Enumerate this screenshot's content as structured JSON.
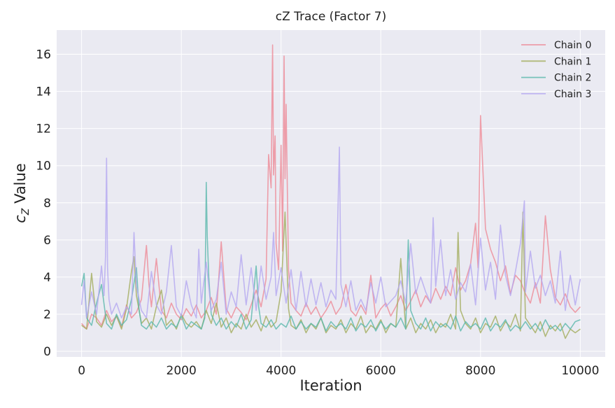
{
  "chart_data": {
    "type": "line",
    "title": "cZ Trace (Factor 7)",
    "xlabel": "Iteration",
    "ylabel": "cZ Value",
    "ylabel_parts": {
      "italic": "c",
      "subscript": "Z",
      "rest": " Value"
    },
    "xlim": [
      -500,
      10500
    ],
    "ylim": [
      -0.3,
      17.3
    ],
    "x_ticks": [
      0,
      2000,
      4000,
      6000,
      8000,
      10000
    ],
    "x_tick_labels": [
      "0",
      "2000",
      "4000",
      "6000",
      "8000",
      "10000"
    ],
    "y_ticks": [
      0,
      2,
      4,
      6,
      8,
      10,
      12,
      14,
      16
    ],
    "y_tick_labels": [
      "0",
      "2",
      "4",
      "6",
      "8",
      "10",
      "12",
      "14",
      "16"
    ],
    "grid": true,
    "legend_position": "top-right",
    "series": [
      {
        "name": "Chain 0",
        "color": "#ee8a96",
        "x": [
          0,
          100,
          200,
          300,
          400,
          500,
          600,
          700,
          800,
          900,
          1000,
          1100,
          1200,
          1300,
          1350,
          1400,
          1500,
          1600,
          1700,
          1800,
          1900,
          2000,
          2100,
          2200,
          2300,
          2400,
          2500,
          2600,
          2700,
          2800,
          2900,
          3000,
          3100,
          3200,
          3300,
          3400,
          3500,
          3600,
          3700,
          3750,
          3800,
          3830,
          3850,
          3880,
          3900,
          3950,
          4000,
          4030,
          4060,
          4080,
          4100,
          4150,
          4200,
          4300,
          4400,
          4500,
          4600,
          4700,
          4800,
          4900,
          5000,
          5100,
          5200,
          5300,
          5400,
          5500,
          5600,
          5700,
          5800,
          5900,
          6000,
          6100,
          6200,
          6300,
          6400,
          6500,
          6600,
          6700,
          6800,
          6900,
          7000,
          7100,
          7200,
          7300,
          7400,
          7500,
          7600,
          7700,
          7800,
          7900,
          7950,
          8000,
          8050,
          8100,
          8200,
          8300,
          8400,
          8500,
          8600,
          8700,
          8800,
          8900,
          9000,
          9100,
          9200,
          9300,
          9400,
          9500,
          9600,
          9700,
          9800,
          9900,
          10000
        ],
        "values": [
          1.5,
          1.2,
          2.0,
          1.8,
          1.4,
          2.2,
          1.6,
          1.9,
          1.3,
          2.5,
          1.8,
          2.1,
          2.8,
          5.7,
          3.6,
          2.4,
          5.0,
          2.2,
          1.8,
          2.6,
          2.0,
          1.7,
          2.3,
          1.9,
          2.5,
          1.8,
          2.2,
          2.9,
          2.0,
          5.9,
          2.3,
          1.8,
          2.4,
          2.1,
          1.7,
          2.5,
          3.3,
          2.4,
          3.9,
          10.6,
          8.8,
          16.5,
          9.5,
          11.6,
          5.8,
          4.4,
          11.1,
          5.4,
          15.9,
          9.3,
          13.3,
          4.4,
          2.6,
          2.2,
          1.9,
          2.6,
          2.0,
          2.4,
          1.8,
          2.2,
          2.7,
          2.0,
          2.4,
          3.6,
          2.2,
          1.9,
          2.5,
          2.0,
          4.1,
          1.8,
          2.3,
          2.6,
          1.9,
          2.4,
          3.0,
          2.2,
          2.7,
          3.3,
          2.4,
          3.0,
          2.6,
          3.4,
          2.8,
          3.5,
          3.0,
          4.5,
          3.3,
          3.8,
          4.7,
          6.9,
          4.5,
          12.7,
          9.6,
          6.6,
          5.5,
          4.8,
          3.8,
          4.6,
          3.1,
          4.1,
          3.8,
          3.1,
          2.6,
          3.7,
          2.6,
          7.3,
          4.4,
          2.9,
          2.5,
          3.1,
          2.4,
          2.1,
          2.4
        ],
        "stroke_width": 1.6
      },
      {
        "name": "Chain 1",
        "color": "#a3ac5c",
        "x": [
          0,
          100,
          200,
          300,
          400,
          500,
          600,
          700,
          800,
          900,
          1000,
          1050,
          1100,
          1200,
          1300,
          1400,
          1500,
          1600,
          1700,
          1800,
          1900,
          2000,
          2100,
          2200,
          2300,
          2400,
          2500,
          2600,
          2700,
          2800,
          2900,
          3000,
          3100,
          3200,
          3300,
          3400,
          3500,
          3600,
          3700,
          3800,
          3900,
          4000,
          4080,
          4150,
          4200,
          4300,
          4400,
          4500,
          4600,
          4700,
          4800,
          4900,
          5000,
          5100,
          5200,
          5300,
          5400,
          5500,
          5600,
          5700,
          5800,
          5900,
          6000,
          6100,
          6200,
          6300,
          6400,
          6500,
          6600,
          6700,
          6800,
          6900,
          7000,
          7100,
          7200,
          7300,
          7400,
          7500,
          7550,
          7600,
          7700,
          7800,
          7900,
          8000,
          8100,
          8200,
          8300,
          8400,
          8500,
          8600,
          8700,
          8800,
          8850,
          8900,
          9000,
          9100,
          9200,
          9300,
          9400,
          9500,
          9600,
          9700,
          9800,
          9900,
          10000
        ],
        "values": [
          1.4,
          1.2,
          4.2,
          1.6,
          1.3,
          2.0,
          1.4,
          1.9,
          1.2,
          2.3,
          4.3,
          5.1,
          3.0,
          1.5,
          1.8,
          1.2,
          2.4,
          3.3,
          1.4,
          1.7,
          1.2,
          2.0,
          1.5,
          1.3,
          1.6,
          1.2,
          2.2,
          1.5,
          2.6,
          1.3,
          1.8,
          1.0,
          1.5,
          1.2,
          2.0,
          1.3,
          1.7,
          1.1,
          1.9,
          1.3,
          1.6,
          3.2,
          7.5,
          2.3,
          1.4,
          1.2,
          1.7,
          1.0,
          1.5,
          1.2,
          1.8,
          1.0,
          1.4,
          1.2,
          1.7,
          1.0,
          1.5,
          1.2,
          1.9,
          1.0,
          1.4,
          1.2,
          1.7,
          1.0,
          1.5,
          1.3,
          5.0,
          1.2,
          1.8,
          1.0,
          1.5,
          1.2,
          1.7,
          1.0,
          1.5,
          1.3,
          2.0,
          1.2,
          6.4,
          2.2,
          1.5,
          1.2,
          1.8,
          1.0,
          1.5,
          1.3,
          1.9,
          1.1,
          1.6,
          1.3,
          2.0,
          1.1,
          7.5,
          1.8,
          1.4,
          1.0,
          1.6,
          0.8,
          1.4,
          1.1,
          1.5,
          0.7,
          1.2,
          1.0,
          1.2
        ],
        "stroke_width": 1.6
      },
      {
        "name": "Chain 2",
        "color": "#5ab8ab",
        "x": [
          0,
          50,
          100,
          200,
          300,
          400,
          500,
          600,
          700,
          800,
          900,
          1000,
          1100,
          1150,
          1200,
          1300,
          1400,
          1500,
          1600,
          1700,
          1800,
          1900,
          2000,
          2100,
          2200,
          2300,
          2400,
          2470,
          2500,
          2520,
          2550,
          2600,
          2700,
          2800,
          2900,
          3000,
          3100,
          3200,
          3300,
          3400,
          3500,
          3550,
          3600,
          3700,
          3800,
          3900,
          4000,
          4100,
          4200,
          4300,
          4400,
          4500,
          4600,
          4700,
          4800,
          4900,
          5000,
          5100,
          5200,
          5300,
          5400,
          5500,
          5600,
          5700,
          5800,
          5900,
          6000,
          6100,
          6200,
          6300,
          6400,
          6500,
          6550,
          6600,
          6700,
          6800,
          6900,
          7000,
          7100,
          7200,
          7300,
          7400,
          7500,
          7600,
          7700,
          7800,
          7900,
          8000,
          8100,
          8200,
          8300,
          8400,
          8500,
          8600,
          8700,
          8800,
          8900,
          9000,
          9100,
          9200,
          9300,
          9400,
          9500,
          9600,
          9700,
          9800,
          9900,
          10000
        ],
        "values": [
          3.5,
          4.2,
          1.8,
          1.4,
          2.6,
          3.6,
          1.5,
          1.2,
          2.0,
          1.4,
          1.7,
          2.8,
          4.5,
          2.3,
          1.4,
          1.2,
          1.6,
          1.3,
          1.8,
          1.2,
          1.5,
          1.3,
          1.9,
          1.2,
          1.6,
          1.4,
          1.2,
          1.8,
          9.1,
          6.2,
          4.0,
          2.0,
          1.4,
          1.8,
          1.2,
          1.6,
          1.3,
          2.0,
          1.2,
          1.7,
          4.6,
          2.4,
          1.5,
          1.3,
          1.7,
          1.2,
          1.5,
          1.3,
          1.9,
          1.2,
          1.6,
          1.2,
          1.5,
          1.3,
          1.8,
          1.1,
          1.6,
          1.3,
          1.5,
          1.2,
          1.8,
          1.1,
          1.5,
          1.3,
          1.7,
          1.1,
          1.6,
          1.2,
          1.5,
          1.3,
          1.8,
          1.2,
          6.0,
          2.2,
          1.5,
          1.2,
          1.8,
          1.1,
          1.6,
          1.3,
          1.5,
          1.2,
          1.9,
          1.1,
          1.6,
          1.3,
          1.5,
          1.2,
          1.8,
          1.1,
          1.5,
          1.3,
          1.7,
          1.1,
          1.4,
          1.2,
          1.6,
          1.2,
          1.5,
          1.1,
          1.7,
          1.2,
          1.4,
          1.1,
          1.5,
          1.2,
          1.6,
          1.7
        ],
        "stroke_width": 1.6
      },
      {
        "name": "Chain 3",
        "color": "#b4a8f0",
        "x": [
          0,
          50,
          100,
          200,
          300,
          400,
          450,
          480,
          500,
          520,
          550,
          600,
          700,
          800,
          900,
          1000,
          1050,
          1100,
          1200,
          1300,
          1400,
          1500,
          1600,
          1700,
          1800,
          1900,
          2000,
          2100,
          2200,
          2300,
          2350,
          2400,
          2500,
          2600,
          2700,
          2800,
          2900,
          3000,
          3100,
          3200,
          3300,
          3400,
          3500,
          3600,
          3700,
          3800,
          3850,
          3900,
          4000,
          4100,
          4200,
          4300,
          4400,
          4500,
          4600,
          4700,
          4800,
          4900,
          5000,
          5100,
          5170,
          5200,
          5300,
          5400,
          5500,
          5600,
          5700,
          5800,
          5900,
          6000,
          6100,
          6200,
          6300,
          6400,
          6500,
          6600,
          6700,
          6800,
          6900,
          7000,
          7050,
          7100,
          7200,
          7300,
          7400,
          7500,
          7600,
          7700,
          7800,
          7900,
          8000,
          8100,
          8200,
          8300,
          8400,
          8500,
          8600,
          8700,
          8800,
          8880,
          8900,
          9000,
          9100,
          9200,
          9300,
          9400,
          9500,
          9600,
          9700,
          9800,
          9900,
          10000
        ],
        "values": [
          2.5,
          3.8,
          1.8,
          3.2,
          2.0,
          4.6,
          3.0,
          5.1,
          10.4,
          4.5,
          2.8,
          2.0,
          2.6,
          1.8,
          2.4,
          2.0,
          6.4,
          3.5,
          2.2,
          1.8,
          4.3,
          2.5,
          2.0,
          3.2,
          5.7,
          2.4,
          1.9,
          3.8,
          2.5,
          1.8,
          5.5,
          2.6,
          4.8,
          2.2,
          2.8,
          4.8,
          2.0,
          3.2,
          2.4,
          5.2,
          2.5,
          4.5,
          2.2,
          4.6,
          2.8,
          4.0,
          6.4,
          3.0,
          4.5,
          2.6,
          4.4,
          2.2,
          4.3,
          2.4,
          3.9,
          2.5,
          3.7,
          2.4,
          3.3,
          2.8,
          11.0,
          3.6,
          2.4,
          3.8,
          2.2,
          2.8,
          2.2,
          3.7,
          2.6,
          4.0,
          2.4,
          2.7,
          3.0,
          3.8,
          2.6,
          5.8,
          3.1,
          4.0,
          3.2,
          2.6,
          7.2,
          3.5,
          6.0,
          3.0,
          4.4,
          2.8,
          3.7,
          3.2,
          4.7,
          2.5,
          6.1,
          3.3,
          4.8,
          2.8,
          6.8,
          4.1,
          3.0,
          4.3,
          5.8,
          8.1,
          3.2,
          5.4,
          3.4,
          4.1,
          3.0,
          3.8,
          2.6,
          5.4,
          2.2,
          4.1,
          2.5,
          3.9
        ],
        "stroke_width": 1.6
      }
    ]
  },
  "style": {
    "plot_background": "#eaeaf2",
    "grid_color": "#ffffff",
    "line_opacity": 0.8
  }
}
